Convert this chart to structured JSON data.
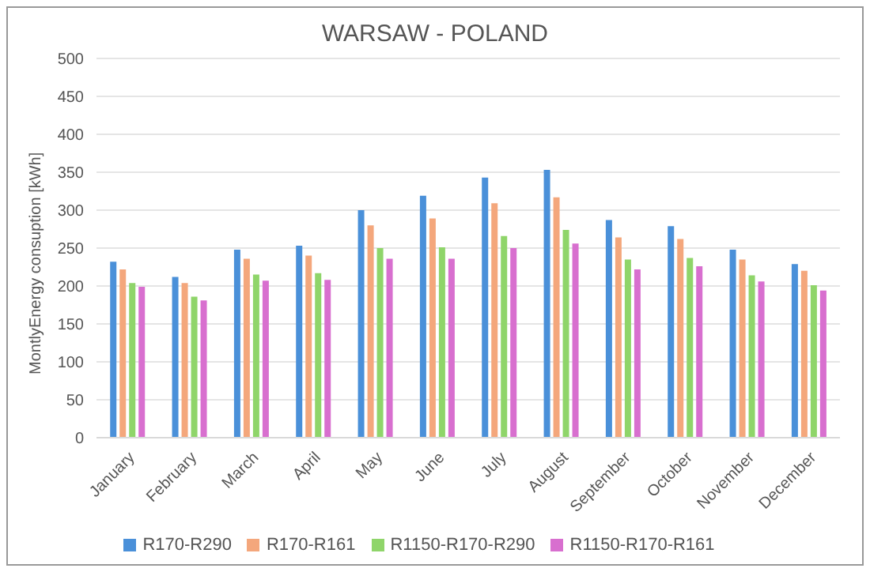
{
  "chart_data": {
    "type": "bar",
    "title": "WARSAW - POLAND",
    "ylabel": "MontlyEnergy consuption [kWh]",
    "categories": [
      "January",
      "February",
      "March",
      "April",
      "May",
      "June",
      "July",
      "August",
      "September",
      "October",
      "November",
      "December"
    ],
    "series": [
      {
        "name": "R170-R290",
        "color": "#4a90d9",
        "values": [
          232,
          212,
          248,
          253,
          300,
          319,
          343,
          353,
          287,
          279,
          248,
          229
        ]
      },
      {
        "name": "R170-R161",
        "color": "#f4a77c",
        "values": [
          222,
          204,
          236,
          240,
          280,
          289,
          309,
          317,
          264,
          262,
          235,
          220
        ]
      },
      {
        "name": "R1150-R170-R290",
        "color": "#8fd56a",
        "values": [
          204,
          186,
          215,
          217,
          250,
          251,
          266,
          274,
          235,
          237,
          214,
          201
        ]
      },
      {
        "name": "R1150-R170-R161",
        "color": "#d86fcf",
        "values": [
          199,
          181,
          207,
          208,
          236,
          236,
          250,
          256,
          222,
          226,
          206,
          194
        ]
      }
    ],
    "ylim": [
      0,
      500
    ],
    "yticks": [
      0,
      50,
      100,
      150,
      200,
      250,
      300,
      350,
      400,
      450,
      500
    ],
    "grid": "y",
    "legend": "bottom"
  }
}
